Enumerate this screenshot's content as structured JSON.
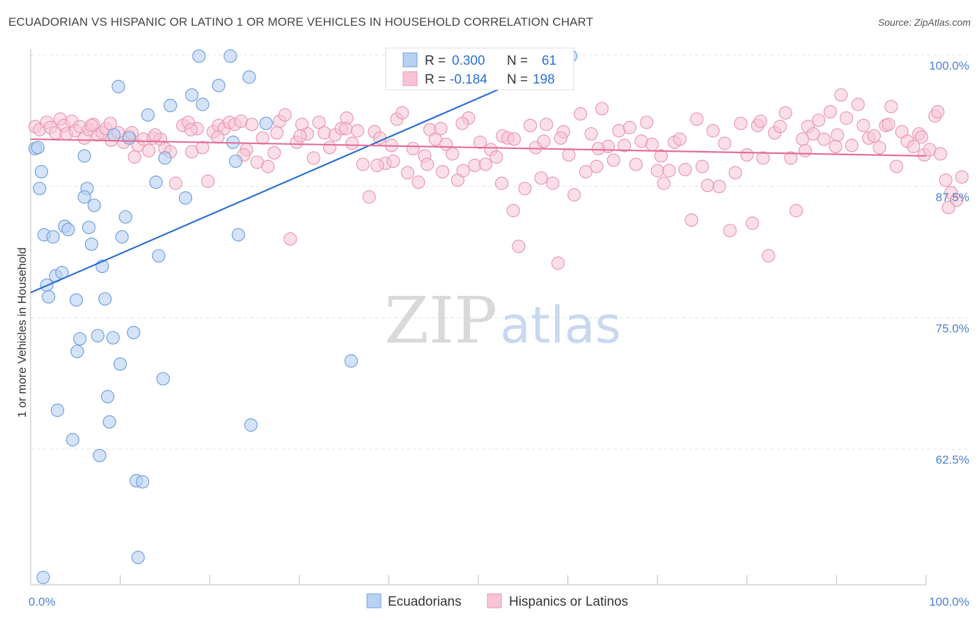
{
  "title": "ECUADORIAN VS HISPANIC OR LATINO 1 OR MORE VEHICLES IN HOUSEHOLD CORRELATION CHART",
  "source": "Source: ZipAtlas.com",
  "watermark": {
    "zip": "ZIP",
    "atlas": "atlas"
  },
  "colors": {
    "blue_fill": "#b8d1f3",
    "blue_stroke": "#6f9fde",
    "blue_line": "#2a6fd0",
    "pink_fill": "#f8c4d4",
    "pink_stroke": "#e897b2",
    "pink_line": "#e36d98",
    "tick_text": "#4a7fd0"
  },
  "legend_top": {
    "rows": [
      {
        "r_label": "R =",
        "r_value": "0.300",
        "n_label": "N =",
        "n_value": "61"
      },
      {
        "r_label": "R =",
        "r_value": "-0.184",
        "n_label": "N =",
        "n_value": "198"
      }
    ]
  },
  "legend_bottom": {
    "items": [
      "Ecuadorians",
      "Hispanics or Latinos"
    ]
  },
  "chart_data": {
    "type": "scatter",
    "title": "ECUADORIAN VS HISPANIC OR LATINO 1 OR MORE VEHICLES IN HOUSEHOLD CORRELATION CHART",
    "xlabel": "",
    "ylabel": "1 or more Vehicles in Household",
    "x_tick_labels": [
      "0.0%",
      "100.0%"
    ],
    "y_tick_labels": [
      "100.0%",
      "87.5%",
      "75.0%",
      "62.5%"
    ],
    "y_ticks": [
      100.0,
      87.5,
      75.0,
      62.5
    ],
    "xlim": [
      0,
      100
    ],
    "ylim": [
      49.6,
      100.6
    ],
    "grid": true,
    "series": [
      {
        "name": "Ecuadorians",
        "r": 0.3,
        "n": 61,
        "trend": {
          "x0": 0,
          "y0": 77.4,
          "x1": 60.3,
          "y1": 99.7
        },
        "points": [
          [
            0.5,
            91.1
          ],
          [
            0.8,
            91.2
          ],
          [
            1.0,
            87.3
          ],
          [
            1.2,
            88.9
          ],
          [
            1.5,
            82.9
          ],
          [
            1.8,
            78.1
          ],
          [
            2.0,
            77.0
          ],
          [
            2.5,
            82.7
          ],
          [
            2.8,
            79.0
          ],
          [
            3.5,
            79.3
          ],
          [
            3.8,
            83.7
          ],
          [
            4.2,
            83.4
          ],
          [
            5.1,
            76.7
          ],
          [
            5.5,
            73.0
          ],
          [
            5.2,
            71.8
          ],
          [
            6.0,
            90.4
          ],
          [
            6.3,
            87.3
          ],
          [
            6.5,
            83.6
          ],
          [
            6.8,
            82.0
          ],
          [
            6.0,
            86.5
          ],
          [
            7.1,
            85.7
          ],
          [
            7.5,
            73.3
          ],
          [
            7.7,
            61.9
          ],
          [
            8.0,
            79.9
          ],
          [
            8.3,
            76.8
          ],
          [
            8.6,
            67.5
          ],
          [
            8.8,
            65.1
          ],
          [
            9.2,
            73.1
          ],
          [
            9.8,
            97.0
          ],
          [
            10.0,
            70.6
          ],
          [
            10.2,
            82.7
          ],
          [
            10.6,
            84.6
          ],
          [
            11.0,
            92.1
          ],
          [
            11.5,
            73.6
          ],
          [
            11.8,
            59.5
          ],
          [
            12.0,
            52.2
          ],
          [
            12.5,
            59.4
          ],
          [
            13.1,
            94.3
          ],
          [
            14.0,
            87.9
          ],
          [
            14.3,
            80.9
          ],
          [
            14.8,
            69.2
          ],
          [
            15.0,
            90.2
          ],
          [
            15.6,
            95.2
          ],
          [
            17.3,
            86.4
          ],
          [
            18.0,
            96.2
          ],
          [
            18.8,
            99.9
          ],
          [
            19.2,
            95.3
          ],
          [
            21.0,
            97.1
          ],
          [
            22.3,
            99.9
          ],
          [
            22.6,
            91.7
          ],
          [
            22.9,
            89.9
          ],
          [
            23.2,
            82.9
          ],
          [
            24.4,
            97.9
          ],
          [
            24.6,
            64.8
          ],
          [
            26.3,
            93.5
          ],
          [
            35.8,
            70.9
          ],
          [
            60.3,
            99.9
          ],
          [
            1.4,
            50.3
          ],
          [
            3.0,
            66.2
          ],
          [
            4.7,
            63.4
          ],
          [
            9.3,
            92.4
          ]
        ]
      },
      {
        "name": "Hispanics or Latinos",
        "r": -0.184,
        "n": 198,
        "trend": {
          "x0": 0,
          "y0": 92.0,
          "x1": 100,
          "y1": 90.4
        },
        "points": [
          [
            0.5,
            93.2
          ],
          [
            1.0,
            92.9
          ],
          [
            1.8,
            93.6
          ],
          [
            2.2,
            93.1
          ],
          [
            2.8,
            92.6
          ],
          [
            3.3,
            93.9
          ],
          [
            3.7,
            93.3
          ],
          [
            4.0,
            92.5
          ],
          [
            4.6,
            93.7
          ],
          [
            5.0,
            92.8
          ],
          [
            5.5,
            93.2
          ],
          [
            6.0,
            92.1
          ],
          [
            6.5,
            92.9
          ],
          [
            7.0,
            93.4
          ],
          [
            7.5,
            92.4
          ],
          [
            8.0,
            92.6
          ],
          [
            8.4,
            93.0
          ],
          [
            9.0,
            91.9
          ],
          [
            9.8,
            92.6
          ],
          [
            10.4,
            91.7
          ],
          [
            11.0,
            92.3
          ],
          [
            11.6,
            90.3
          ],
          [
            12.0,
            91.4
          ],
          [
            12.6,
            92.0
          ],
          [
            13.2,
            90.9
          ],
          [
            13.7,
            92.1
          ],
          [
            14.5,
            92.0
          ],
          [
            15.0,
            91.1
          ],
          [
            15.6,
            90.8
          ],
          [
            16.2,
            87.8
          ],
          [
            17.0,
            93.3
          ],
          [
            17.6,
            93.6
          ],
          [
            18.0,
            90.8
          ],
          [
            18.6,
            93.0
          ],
          [
            19.2,
            91.2
          ],
          [
            19.8,
            88.0
          ],
          [
            20.4,
            92.7
          ],
          [
            21.0,
            93.3
          ],
          [
            21.6,
            93.0
          ],
          [
            22.2,
            93.6
          ],
          [
            22.8,
            93.4
          ],
          [
            23.5,
            93.7
          ],
          [
            24.1,
            91.0
          ],
          [
            24.7,
            93.4
          ],
          [
            25.3,
            89.8
          ],
          [
            25.9,
            92.1
          ],
          [
            26.5,
            89.4
          ],
          [
            27.2,
            90.7
          ],
          [
            27.8,
            93.7
          ],
          [
            28.4,
            94.3
          ],
          [
            29.0,
            82.5
          ],
          [
            29.7,
            91.7
          ],
          [
            30.3,
            93.4
          ],
          [
            30.9,
            92.5
          ],
          [
            31.6,
            90.2
          ],
          [
            32.2,
            93.6
          ],
          [
            32.8,
            92.6
          ],
          [
            33.4,
            91.2
          ],
          [
            34.0,
            92.4
          ],
          [
            34.7,
            93.0
          ],
          [
            35.3,
            94.0
          ],
          [
            35.9,
            91.6
          ],
          [
            36.5,
            92.8
          ],
          [
            37.1,
            89.6
          ],
          [
            37.8,
            86.5
          ],
          [
            38.4,
            92.7
          ],
          [
            39.0,
            92.1
          ],
          [
            39.6,
            89.7
          ],
          [
            40.3,
            91.4
          ],
          [
            40.9,
            93.9
          ],
          [
            41.5,
            94.5
          ],
          [
            42.1,
            88.8
          ],
          [
            42.7,
            91.1
          ],
          [
            43.3,
            87.9
          ],
          [
            44.0,
            90.4
          ],
          [
            44.6,
            92.9
          ],
          [
            45.2,
            92.0
          ],
          [
            45.8,
            93.0
          ],
          [
            46.4,
            91.5
          ],
          [
            47.1,
            90.6
          ],
          [
            47.7,
            88.1
          ],
          [
            48.3,
            89.0
          ],
          [
            48.9,
            94.0
          ],
          [
            49.6,
            89.5
          ],
          [
            50.2,
            91.7
          ],
          [
            50.8,
            89.6
          ],
          [
            51.4,
            91.0
          ],
          [
            52.0,
            90.3
          ],
          [
            52.7,
            92.3
          ],
          [
            53.3,
            92.1
          ],
          [
            53.9,
            85.2
          ],
          [
            54.5,
            81.8
          ],
          [
            55.2,
            87.3
          ],
          [
            55.8,
            93.3
          ],
          [
            56.4,
            91.2
          ],
          [
            57.0,
            88.3
          ],
          [
            57.6,
            93.4
          ],
          [
            58.3,
            87.8
          ],
          [
            58.9,
            80.2
          ],
          [
            59.5,
            92.7
          ],
          [
            60.1,
            90.5
          ],
          [
            60.7,
            86.7
          ],
          [
            61.4,
            94.4
          ],
          [
            62.0,
            88.9
          ],
          [
            62.6,
            92.5
          ],
          [
            63.2,
            89.4
          ],
          [
            63.8,
            94.9
          ],
          [
            64.5,
            91.3
          ],
          [
            65.1,
            90.0
          ],
          [
            65.7,
            92.8
          ],
          [
            66.3,
            91.4
          ],
          [
            66.9,
            93.1
          ],
          [
            67.6,
            89.6
          ],
          [
            68.2,
            91.8
          ],
          [
            68.8,
            93.6
          ],
          [
            69.4,
            91.5
          ],
          [
            70.0,
            89.0
          ],
          [
            70.7,
            87.8
          ],
          [
            71.3,
            89.0
          ],
          [
            71.9,
            91.7
          ],
          [
            72.5,
            92.0
          ],
          [
            73.1,
            89.1
          ],
          [
            73.8,
            84.3
          ],
          [
            74.4,
            93.9
          ],
          [
            75.0,
            89.4
          ],
          [
            75.6,
            87.6
          ],
          [
            76.2,
            92.8
          ],
          [
            76.9,
            87.5
          ],
          [
            77.5,
            91.6
          ],
          [
            78.1,
            83.3
          ],
          [
            78.7,
            88.8
          ],
          [
            79.3,
            93.5
          ],
          [
            80.0,
            90.5
          ],
          [
            80.6,
            84.0
          ],
          [
            81.2,
            93.3
          ],
          [
            81.8,
            90.2
          ],
          [
            82.4,
            80.9
          ],
          [
            83.1,
            92.6
          ],
          [
            83.7,
            93.2
          ],
          [
            84.3,
            94.5
          ],
          [
            84.9,
            90.2
          ],
          [
            85.5,
            85.2
          ],
          [
            86.2,
            92.0
          ],
          [
            86.8,
            93.2
          ],
          [
            87.4,
            92.5
          ],
          [
            88.0,
            93.8
          ],
          [
            88.6,
            92.0
          ],
          [
            89.3,
            94.6
          ],
          [
            89.9,
            91.3
          ],
          [
            90.5,
            96.2
          ],
          [
            91.1,
            94.0
          ],
          [
            91.7,
            91.4
          ],
          [
            92.4,
            95.3
          ],
          [
            93.0,
            93.3
          ],
          [
            93.6,
            92.1
          ],
          [
            94.2,
            92.3
          ],
          [
            94.8,
            91.2
          ],
          [
            95.5,
            93.3
          ],
          [
            96.1,
            95.1
          ],
          [
            96.7,
            89.4
          ],
          [
            97.3,
            92.7
          ],
          [
            97.9,
            91.8
          ],
          [
            98.6,
            91.3
          ],
          [
            99.2,
            92.5
          ],
          [
            99.8,
            90.5
          ],
          [
            100.4,
            91.0
          ],
          [
            101.0,
            94.2
          ],
          [
            101.6,
            90.6
          ],
          [
            102.2,
            88.1
          ],
          [
            102.8,
            86.9
          ],
          [
            103.4,
            86.2
          ],
          [
            104.0,
            88.4
          ],
          [
            101.3,
            94.6
          ],
          [
            102.5,
            85.5
          ],
          [
            52.6,
            87.8
          ],
          [
            48.2,
            93.5
          ],
          [
            23.8,
            90.5
          ],
          [
            30.1,
            92.3
          ],
          [
            11.3,
            92.6
          ],
          [
            6.8,
            93.3
          ],
          [
            8.9,
            93.5
          ],
          [
            13.9,
            92.4
          ],
          [
            38.7,
            89.5
          ],
          [
            57.3,
            91.8
          ],
          [
            70.4,
            90.4
          ],
          [
            81.5,
            93.7
          ],
          [
            86.5,
            90.9
          ],
          [
            90.1,
            92.4
          ],
          [
            95.8,
            93.4
          ],
          [
            99.5,
            92.2
          ],
          [
            59.2,
            92.1
          ],
          [
            63.4,
            91.1
          ],
          [
            44.3,
            89.6
          ],
          [
            27.5,
            92.6
          ],
          [
            17.9,
            92.9
          ],
          [
            20.9,
            92.2
          ],
          [
            35.2,
            93.0
          ],
          [
            40.5,
            89.9
          ],
          [
            46.0,
            88.9
          ],
          [
            54.0,
            92.0
          ]
        ]
      }
    ]
  }
}
